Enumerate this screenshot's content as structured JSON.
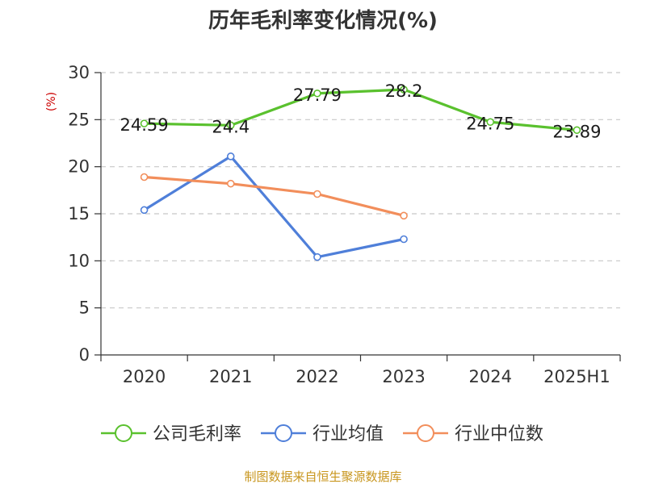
{
  "chart_data": {
    "type": "line",
    "title": "历年毛利率变化情况(%)",
    "unit_label": "(%)",
    "categories": [
      "2020",
      "2021",
      "2022",
      "2023",
      "2024",
      "2025H1"
    ],
    "ylim": [
      0,
      30
    ],
    "yticks": [
      0,
      5,
      10,
      15,
      20,
      25,
      30
    ],
    "grid": true,
    "legend_position": "bottom",
    "series": [
      {
        "name": "公司毛利率",
        "color": "#5ac12e",
        "values": [
          24.59,
          24.4,
          27.79,
          28.2,
          24.75,
          23.89
        ],
        "labels": [
          "24.59",
          "24.4",
          "27.79",
          "28.2",
          "24.75",
          "23.89"
        ],
        "show_labels": true
      },
      {
        "name": "行业均值",
        "color": "#4f7fd9",
        "values": [
          15.4,
          21.1,
          10.4,
          12.3,
          null,
          null
        ],
        "show_labels": false
      },
      {
        "name": "行业中位数",
        "color": "#f28e5b",
        "values": [
          18.9,
          18.2,
          17.1,
          14.8,
          null,
          null
        ],
        "show_labels": false
      }
    ]
  },
  "footer": {
    "source": "制图数据来自恒生聚源数据库"
  }
}
